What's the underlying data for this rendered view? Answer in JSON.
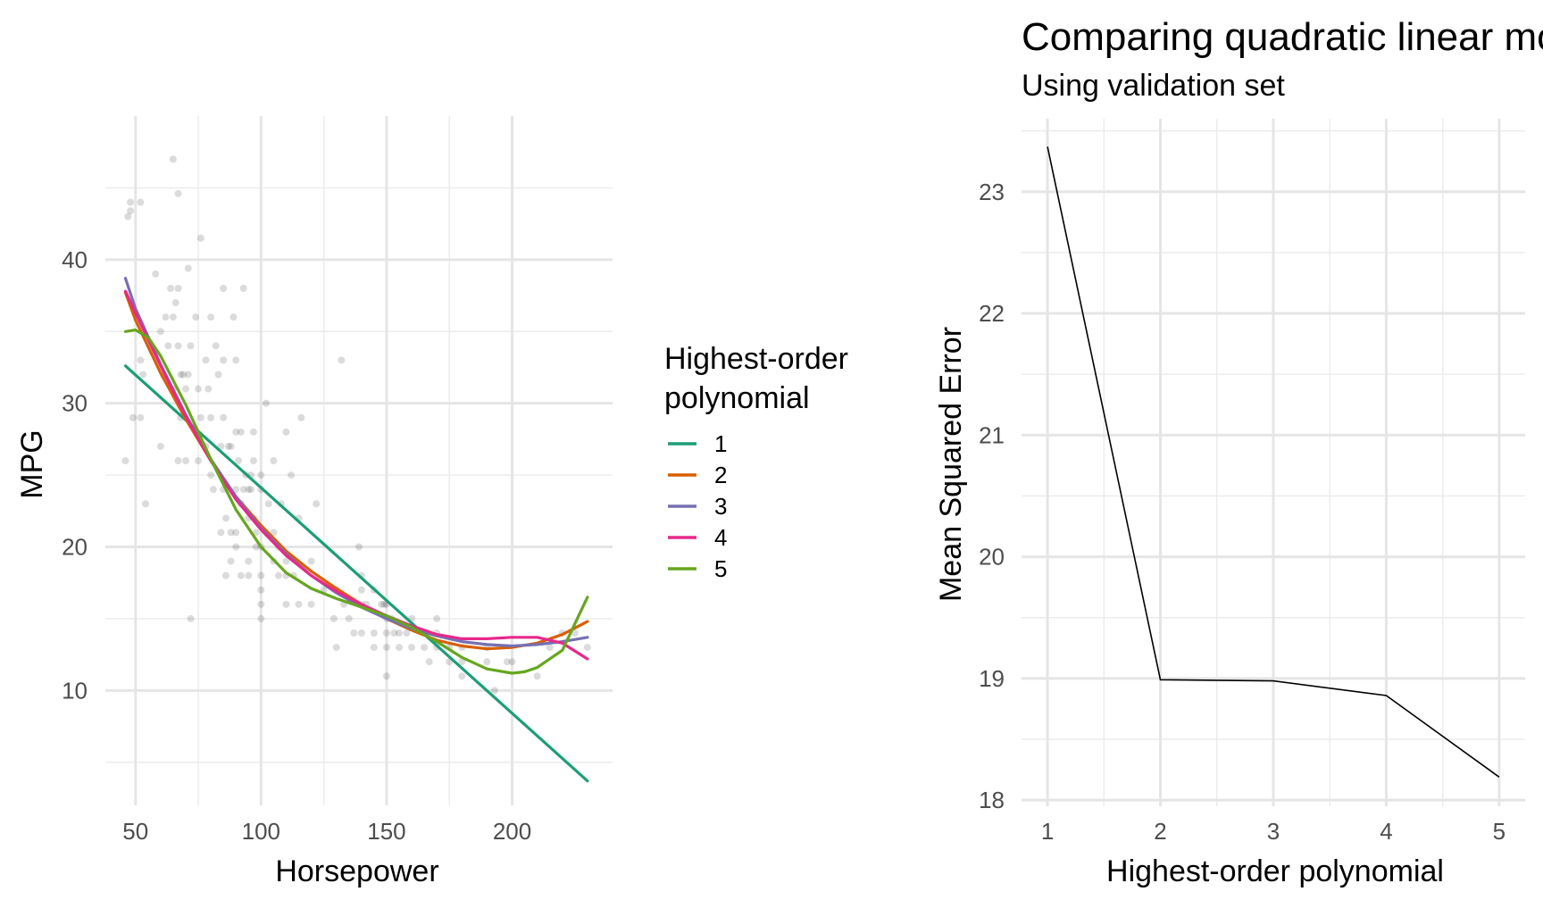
{
  "chart_data": [
    {
      "type": "scatter",
      "title": "",
      "xlabel": "Horsepower",
      "ylabel": "MPG",
      "xlim": [
        38,
        240
      ],
      "ylim": [
        2,
        50
      ],
      "x_ticks": [
        "50",
        "100",
        "150",
        "200"
      ],
      "y_ticks": [
        "10",
        "20",
        "30",
        "40"
      ],
      "x_tick_values": [
        50,
        100,
        150,
        200
      ],
      "y_tick_values": [
        10,
        20,
        30,
        40
      ],
      "grid": true,
      "legend": {
        "title_lines": [
          "Highest-order",
          "polynomial"
        ],
        "placement": "right"
      },
      "points_color": "#000000",
      "points": [
        [
          46,
          26
        ],
        [
          47,
          43
        ],
        [
          48,
          44
        ],
        [
          48,
          43.4
        ],
        [
          49,
          29
        ],
        [
          52,
          29
        ],
        [
          52,
          33
        ],
        [
          52,
          44
        ],
        [
          53,
          32
        ],
        [
          54,
          23
        ],
        [
          58,
          39
        ],
        [
          60,
          35
        ],
        [
          60,
          27
        ],
        [
          61,
          32
        ],
        [
          62,
          36
        ],
        [
          63,
          34
        ],
        [
          64,
          38
        ],
        [
          65,
          47
        ],
        [
          65,
          36
        ],
        [
          65,
          31
        ],
        [
          66,
          37
        ],
        [
          67,
          44.6
        ],
        [
          67,
          38
        ],
        [
          67,
          34
        ],
        [
          67,
          26
        ],
        [
          68,
          32
        ],
        [
          68,
          29
        ],
        [
          69,
          32
        ],
        [
          70,
          26
        ],
        [
          70,
          31
        ],
        [
          71,
          39.4
        ],
        [
          71,
          32
        ],
        [
          72,
          34
        ],
        [
          72,
          15
        ],
        [
          74,
          36
        ],
        [
          75,
          31
        ],
        [
          75,
          26
        ],
        [
          76,
          41.5
        ],
        [
          76,
          29
        ],
        [
          78,
          33
        ],
        [
          78,
          27
        ],
        [
          79,
          31
        ],
        [
          80,
          36
        ],
        [
          80,
          29
        ],
        [
          80,
          25
        ],
        [
          81,
          24
        ],
        [
          82,
          34
        ],
        [
          83,
          32
        ],
        [
          84,
          27
        ],
        [
          84,
          21
        ],
        [
          85,
          38
        ],
        [
          85,
          33
        ],
        [
          85,
          29
        ],
        [
          85,
          24
        ],
        [
          86,
          22
        ],
        [
          86,
          18
        ],
        [
          87,
          27
        ],
        [
          88,
          27
        ],
        [
          88,
          21
        ],
        [
          88,
          19
        ],
        [
          89,
          36
        ],
        [
          90,
          33
        ],
        [
          90,
          28
        ],
        [
          90,
          24
        ],
        [
          90,
          21
        ],
        [
          90,
          20
        ],
        [
          91,
          26
        ],
        [
          92,
          28
        ],
        [
          92,
          23
        ],
        [
          92,
          18
        ],
        [
          93,
          38
        ],
        [
          93,
          24
        ],
        [
          94,
          25
        ],
        [
          95,
          24
        ],
        [
          95,
          22
        ],
        [
          95,
          19
        ],
        [
          95,
          18
        ],
        [
          96,
          25
        ],
        [
          96,
          24
        ],
        [
          97,
          28
        ],
        [
          97,
          26
        ],
        [
          97,
          22
        ],
        [
          98,
          21
        ],
        [
          98,
          20
        ],
        [
          100,
          25
        ],
        [
          100,
          24
        ],
        [
          100,
          20
        ],
        [
          100,
          18
        ],
        [
          100,
          17
        ],
        [
          100,
          16
        ],
        [
          100,
          15
        ],
        [
          102,
          30
        ],
        [
          103,
          23
        ],
        [
          105,
          26
        ],
        [
          105,
          21
        ],
        [
          105,
          19
        ],
        [
          107,
          20
        ],
        [
          107,
          18
        ],
        [
          108,
          23
        ],
        [
          110,
          28
        ],
        [
          110,
          19
        ],
        [
          110,
          18
        ],
        [
          110,
          16
        ],
        [
          112,
          25
        ],
        [
          113,
          18
        ],
        [
          115,
          22
        ],
        [
          115,
          16
        ],
        [
          116,
          29
        ],
        [
          120,
          19
        ],
        [
          120,
          16
        ],
        [
          122,
          23
        ],
        [
          125,
          17
        ],
        [
          129,
          15
        ],
        [
          130,
          17
        ],
        [
          130,
          13
        ],
        [
          132,
          33
        ],
        [
          133,
          16
        ],
        [
          135,
          15
        ],
        [
          137,
          14
        ],
        [
          139,
          20
        ],
        [
          140,
          18
        ],
        [
          140,
          17
        ],
        [
          140,
          16
        ],
        [
          140,
          14
        ],
        [
          142,
          16
        ],
        [
          145,
          17
        ],
        [
          145,
          14
        ],
        [
          145,
          13
        ],
        [
          148,
          16
        ],
        [
          149,
          16
        ],
        [
          150,
          16
        ],
        [
          150,
          15
        ],
        [
          150,
          14
        ],
        [
          150,
          13
        ],
        [
          150,
          11
        ],
        [
          152,
          15
        ],
        [
          153,
          14
        ],
        [
          155,
          14
        ],
        [
          155,
          13
        ],
        [
          158,
          14
        ],
        [
          160,
          15
        ],
        [
          160,
          13
        ],
        [
          165,
          14
        ],
        [
          165,
          13
        ],
        [
          167,
          12
        ],
        [
          170,
          15
        ],
        [
          170,
          14
        ],
        [
          170,
          13
        ],
        [
          175,
          13
        ],
        [
          175,
          12
        ],
        [
          180,
          13
        ],
        [
          180,
          12
        ],
        [
          180,
          11
        ],
        [
          190,
          13
        ],
        [
          190,
          12
        ],
        [
          193,
          10
        ],
        [
          198,
          12
        ],
        [
          200,
          12
        ],
        [
          210,
          11
        ],
        [
          215,
          13
        ],
        [
          220,
          14
        ],
        [
          225,
          14
        ],
        [
          230,
          13
        ]
      ],
      "series": [
        {
          "name": "1",
          "color": "#1b9e77",
          "x": [
            46,
            230
          ],
          "y": [
            32.6,
            3.7
          ]
        },
        {
          "name": "2",
          "color": "#d95f02",
          "x": [
            46,
            50,
            60,
            70,
            80,
            90,
            100,
            110,
            120,
            130,
            140,
            150,
            160,
            170,
            180,
            190,
            200,
            210,
            220,
            230
          ],
          "y": [
            37.7,
            35.8,
            32.1,
            28.9,
            26.0,
            23.5,
            21.5,
            19.7,
            18.3,
            17.1,
            16.0,
            15.0,
            14.2,
            13.5,
            13.1,
            12.9,
            13.0,
            13.3,
            13.9,
            14.8
          ]
        },
        {
          "name": "3",
          "color": "#7570b3",
          "x": [
            46,
            50,
            60,
            70,
            80,
            90,
            100,
            110,
            120,
            130,
            140,
            150,
            160,
            170,
            180,
            190,
            200,
            210,
            220,
            230
          ],
          "y": [
            38.7,
            36.6,
            32.7,
            29.2,
            26.1,
            23.5,
            21.3,
            19.5,
            18.0,
            16.8,
            15.8,
            15.0,
            14.3,
            13.8,
            13.4,
            13.2,
            13.1,
            13.2,
            13.4,
            13.7
          ]
        },
        {
          "name": "4",
          "color": "#e7298a",
          "x": [
            46,
            50,
            60,
            70,
            80,
            90,
            100,
            110,
            120,
            130,
            140,
            150,
            160,
            170,
            180,
            190,
            200,
            210,
            220,
            230
          ],
          "y": [
            37.8,
            36.3,
            32.6,
            29.1,
            26.0,
            23.3,
            21.2,
            19.4,
            18.0,
            16.9,
            16.0,
            15.2,
            14.5,
            13.9,
            13.6,
            13.6,
            13.7,
            13.7,
            13.3,
            12.2
          ]
        },
        {
          "name": "5",
          "color": "#66a61e",
          "x": [
            46,
            50,
            55,
            60,
            70,
            80,
            90,
            100,
            110,
            120,
            130,
            140,
            150,
            160,
            170,
            180,
            190,
            200,
            205,
            210,
            220,
            230
          ],
          "y": [
            35.0,
            35.1,
            34.6,
            33.3,
            29.9,
            26.1,
            22.6,
            20.0,
            18.2,
            17.1,
            16.4,
            15.8,
            15.2,
            14.4,
            13.4,
            12.3,
            11.5,
            11.2,
            11.3,
            11.6,
            12.8,
            16.5
          ]
        }
      ]
    },
    {
      "type": "line",
      "title": "Comparing quadratic linear models",
      "subtitle": "Using validation set",
      "xlabel": "Highest-order polynomial",
      "ylabel": "Mean Squared Error",
      "xlim": [
        0.77,
        5.23
      ],
      "ylim": [
        17.95,
        23.6
      ],
      "x_ticks": [
        "1",
        "2",
        "3",
        "4",
        "5"
      ],
      "y_ticks": [
        "18",
        "19",
        "20",
        "21",
        "22",
        "23"
      ],
      "x_tick_values": [
        1,
        2,
        3,
        4,
        5
      ],
      "y_tick_values": [
        18,
        19,
        20,
        21,
        22,
        23
      ],
      "grid": true,
      "line_color": "#000000",
      "x": [
        1,
        2,
        3,
        4,
        5
      ],
      "y": [
        23.37,
        18.99,
        18.98,
        18.86,
        18.19
      ]
    }
  ]
}
